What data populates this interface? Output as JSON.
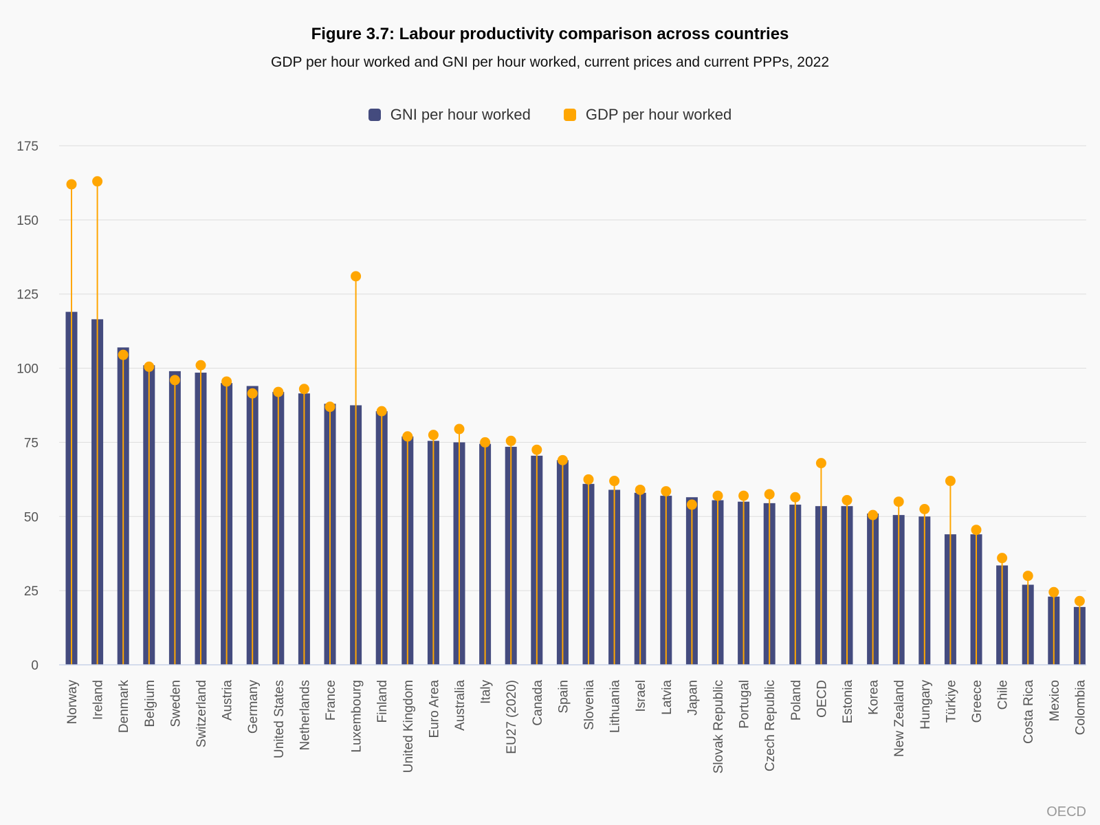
{
  "title": "Figure 3.7: Labour productivity comparison across countries",
  "subtitle": "GDP per hour worked and GNI per hour worked, current prices and current PPPs, 2022",
  "source": "OECD",
  "colors": {
    "gni": "#444b7e",
    "gdp": "#ffa602",
    "grid": "#dddddd",
    "axis": "#c7d2e8",
    "text": "#555555"
  },
  "chart_data": {
    "type": "bar",
    "title": "Figure 3.7: Labour productivity comparison across countries",
    "xlabel": "",
    "ylabel": "",
    "ylim": [
      0,
      175
    ],
    "yticks": [
      0,
      25,
      50,
      75,
      100,
      125,
      150,
      175
    ],
    "legend_position": "top-center",
    "categories": [
      "Norway",
      "Ireland",
      "Denmark",
      "Belgium",
      "Sweden",
      "Switzerland",
      "Austria",
      "Germany",
      "United States",
      "Netherlands",
      "France",
      "Luxembourg",
      "Finland",
      "United Kingdom",
      "Euro Area",
      "Australia",
      "Italy",
      "EU27 (2020)",
      "Canada",
      "Spain",
      "Slovenia",
      "Lithuania",
      "Israel",
      "Latvia",
      "Japan",
      "Slovak Republic",
      "Portugal",
      "Czech Republic",
      "Poland",
      "OECD",
      "Estonia",
      "Korea",
      "New Zealand",
      "Hungary",
      "Türkiye",
      "Greece",
      "Chile",
      "Costa Rica",
      "Mexico",
      "Colombia"
    ],
    "series": [
      {
        "name": "GNI per hour worked",
        "style": "bar",
        "values": [
          119,
          116.5,
          107,
          101,
          99,
          98.5,
          95,
          94,
          92,
          91.5,
          88,
          87.5,
          85.5,
          77,
          75.5,
          75,
          74.5,
          73.5,
          70.5,
          69,
          61,
          59,
          58,
          57,
          56.5,
          55.5,
          55,
          54.5,
          54,
          53.5,
          53.5,
          51,
          50.5,
          50,
          44,
          44,
          33.5,
          27,
          23,
          19.5
        ]
      },
      {
        "name": "GDP per hour worked",
        "style": "dot",
        "values": [
          162,
          163,
          104.5,
          100.5,
          96,
          101,
          95.5,
          91.5,
          92,
          93,
          87,
          131,
          85.5,
          77,
          77.5,
          79.5,
          75,
          75.5,
          72.5,
          69,
          62.5,
          62,
          59,
          58.5,
          54,
          57,
          57,
          57.5,
          56.5,
          68,
          55.5,
          50.5,
          55,
          52.5,
          62,
          45.5,
          36,
          30,
          24.5,
          21.5
        ]
      }
    ]
  }
}
